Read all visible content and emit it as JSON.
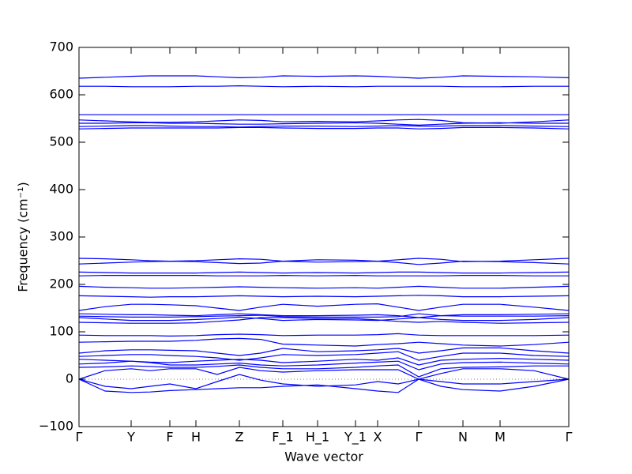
{
  "chart_data": {
    "type": "line",
    "xlabel": "Wave vector",
    "ylabel": "Frequency (cm⁻¹)",
    "color": "#0000ff",
    "hline": 0,
    "xlim": [
      0,
      6.2
    ],
    "ylim": [
      -100,
      700
    ],
    "yticks": [
      {
        "value": -100,
        "label": "−100"
      },
      0,
      100,
      200,
      300,
      400,
      500,
      600,
      700
    ],
    "xticks": [
      {
        "value": 0,
        "label": "Γ"
      },
      {
        "value": 0.66,
        "label": "Y"
      },
      {
        "value": 1.15,
        "label": "F"
      },
      {
        "value": 1.48,
        "label": "H"
      },
      {
        "value": 2.03,
        "label": "Z"
      },
      {
        "value": 2.58,
        "label": "F_1"
      },
      {
        "value": 3.02,
        "label": "H_1"
      },
      {
        "value": 3.5,
        "label": "Y_1"
      },
      {
        "value": 3.78,
        "label": "X"
      },
      {
        "value": 4.3,
        "label": "Γ"
      },
      {
        "value": 4.86,
        "label": "N"
      },
      {
        "value": 5.33,
        "label": "M"
      },
      {
        "value": 6.2,
        "label": "Γ"
      }
    ],
    "x": [
      0,
      0.33,
      0.66,
      0.9,
      1.15,
      1.48,
      1.75,
      2.03,
      2.3,
      2.58,
      3.02,
      3.5,
      3.78,
      4.04,
      4.3,
      4.58,
      4.86,
      5.33,
      5.76,
      6.2
    ],
    "series": [
      {
        "values": [
          635,
          637,
          639,
          640,
          640,
          640,
          638,
          636,
          637,
          640,
          639,
          640,
          639,
          637,
          635,
          637,
          640,
          639,
          638,
          636
        ]
      },
      {
        "values": [
          618,
          618,
          617,
          617,
          617,
          618,
          618,
          619,
          618,
          617,
          618,
          617,
          618,
          618,
          618,
          618,
          617,
          617,
          618,
          618
        ]
      },
      {
        "values": [
          558,
          558,
          558,
          558,
          558,
          558,
          558,
          558,
          558,
          558,
          558,
          558,
          558,
          558,
          558,
          558,
          558,
          558,
          558,
          558
        ]
      },
      {
        "values": [
          547,
          545,
          543,
          542,
          542,
          543,
          545,
          547,
          546,
          543,
          544,
          543,
          545,
          547,
          548,
          546,
          541,
          540,
          543,
          547
        ]
      },
      {
        "values": [
          540,
          540,
          541,
          541,
          540,
          540,
          539,
          538,
          538,
          539,
          540,
          541,
          540,
          538,
          536,
          538,
          540,
          541,
          540,
          540
        ]
      },
      {
        "values": [
          533,
          534,
          535,
          535,
          534,
          533,
          533,
          532,
          533,
          534,
          534,
          533,
          534,
          535,
          534,
          534,
          535,
          535,
          534,
          533
        ]
      },
      {
        "values": [
          528,
          529,
          530,
          530,
          530,
          530,
          530,
          531,
          531,
          530,
          529,
          529,
          530,
          530,
          528,
          529,
          531,
          531,
          530,
          528
        ]
      },
      {
        "values": [
          255,
          254,
          252,
          250,
          249,
          250,
          252,
          254,
          253,
          249,
          252,
          251,
          249,
          252,
          255,
          253,
          248,
          249,
          252,
          255
        ]
      },
      {
        "values": [
          243,
          245,
          247,
          248,
          249,
          248,
          246,
          244,
          245,
          249,
          247,
          248,
          249,
          246,
          242,
          245,
          249,
          248,
          246,
          243
        ]
      },
      {
        "values": [
          226,
          225,
          224,
          224,
          224,
          224,
          225,
          226,
          225,
          224,
          225,
          224,
          225,
          226,
          226,
          225,
          224,
          224,
          225,
          226
        ]
      },
      {
        "values": [
          218,
          219,
          219,
          219,
          219,
          219,
          218,
          218,
          218,
          219,
          218,
          219,
          218,
          218,
          218,
          218,
          219,
          219,
          218,
          218
        ]
      },
      {
        "values": [
          196,
          194,
          193,
          192,
          192,
          193,
          194,
          195,
          194,
          193,
          192,
          193,
          192,
          194,
          196,
          194,
          192,
          192,
          194,
          196
        ]
      },
      {
        "values": [
          176,
          175,
          174,
          173,
          174,
          174,
          175,
          176,
          175,
          174,
          175,
          174,
          175,
          176,
          177,
          176,
          174,
          174,
          175,
          176
        ]
      },
      {
        "values": [
          145,
          153,
          158,
          158,
          157,
          155,
          150,
          145,
          152,
          158,
          154,
          158,
          159,
          152,
          145,
          152,
          158,
          158,
          152,
          145
        ]
      },
      {
        "values": [
          138,
          137,
          136,
          136,
          135,
          134,
          136,
          138,
          136,
          134,
          134,
          135,
          136,
          134,
          130,
          134,
          136,
          136,
          137,
          138
        ]
      },
      {
        "values": [
          133,
          132,
          131,
          131,
          131,
          132,
          133,
          134,
          135,
          132,
          131,
          131,
          131,
          132,
          138,
          134,
          133,
          133,
          133,
          134
        ]
      },
      {
        "values": [
          130,
          127,
          124,
          124,
          124,
          126,
          128,
          131,
          128,
          124,
          126,
          125,
          124,
          127,
          130,
          126,
          124,
          124,
          126,
          130
        ]
      },
      {
        "values": [
          120,
          119,
          118,
          118,
          118,
          119,
          122,
          125,
          130,
          130,
          128,
          128,
          125,
          122,
          120,
          122,
          120,
          118,
          119,
          120
        ]
      },
      {
        "values": [
          93,
          92,
          92,
          92,
          91,
          92,
          94,
          95,
          94,
          92,
          93,
          93,
          94,
          96,
          93,
          92,
          92,
          92,
          92,
          93
        ]
      },
      {
        "values": [
          78,
          79,
          80,
          80,
          80,
          82,
          85,
          86,
          84,
          74,
          72,
          70,
          73,
          75,
          78,
          75,
          72,
          70,
          73,
          78
        ]
      },
      {
        "values": [
          55,
          60,
          62,
          62,
          61,
          60,
          55,
          50,
          55,
          65,
          58,
          60,
          62,
          65,
          55,
          60,
          66,
          66,
          60,
          55
        ]
      },
      {
        "values": [
          48,
          50,
          52,
          52,
          50,
          48,
          45,
          40,
          45,
          52,
          50,
          52,
          55,
          58,
          40,
          48,
          55,
          55,
          50,
          48
        ]
      },
      {
        "values": [
          42,
          40,
          38,
          36,
          35,
          38,
          40,
          42,
          40,
          35,
          38,
          42,
          40,
          45,
          30,
          40,
          42,
          44,
          42,
          40
        ]
      },
      {
        "values": [
          32,
          34,
          38,
          35,
          30,
          30,
          32,
          34,
          30,
          28,
          30,
          34,
          36,
          38,
          20,
          32,
          35,
          36,
          34,
          32
        ]
      },
      {
        "values": [
          25,
          26,
          28,
          27,
          25,
          25,
          27,
          30,
          25,
          22,
          22,
          25,
          28,
          30,
          5,
          22,
          25,
          26,
          28,
          28
        ]
      },
      {
        "values": [
          0,
          18,
          22,
          18,
          22,
          22,
          10,
          25,
          18,
          15,
          18,
          20,
          20,
          20,
          0,
          12,
          22,
          22,
          18,
          0
        ]
      },
      {
        "values": [
          0,
          -15,
          -20,
          -15,
          -10,
          -20,
          -5,
          10,
          -2,
          -10,
          -15,
          -12,
          -5,
          -10,
          0,
          -5,
          -10,
          -10,
          -5,
          0
        ]
      },
      {
        "values": [
          0,
          -25,
          -28,
          -27,
          -24,
          -22,
          -20,
          -18,
          -18,
          -15,
          -12,
          -20,
          -25,
          -28,
          0,
          -15,
          -22,
          -25,
          -15,
          0
        ]
      }
    ]
  }
}
